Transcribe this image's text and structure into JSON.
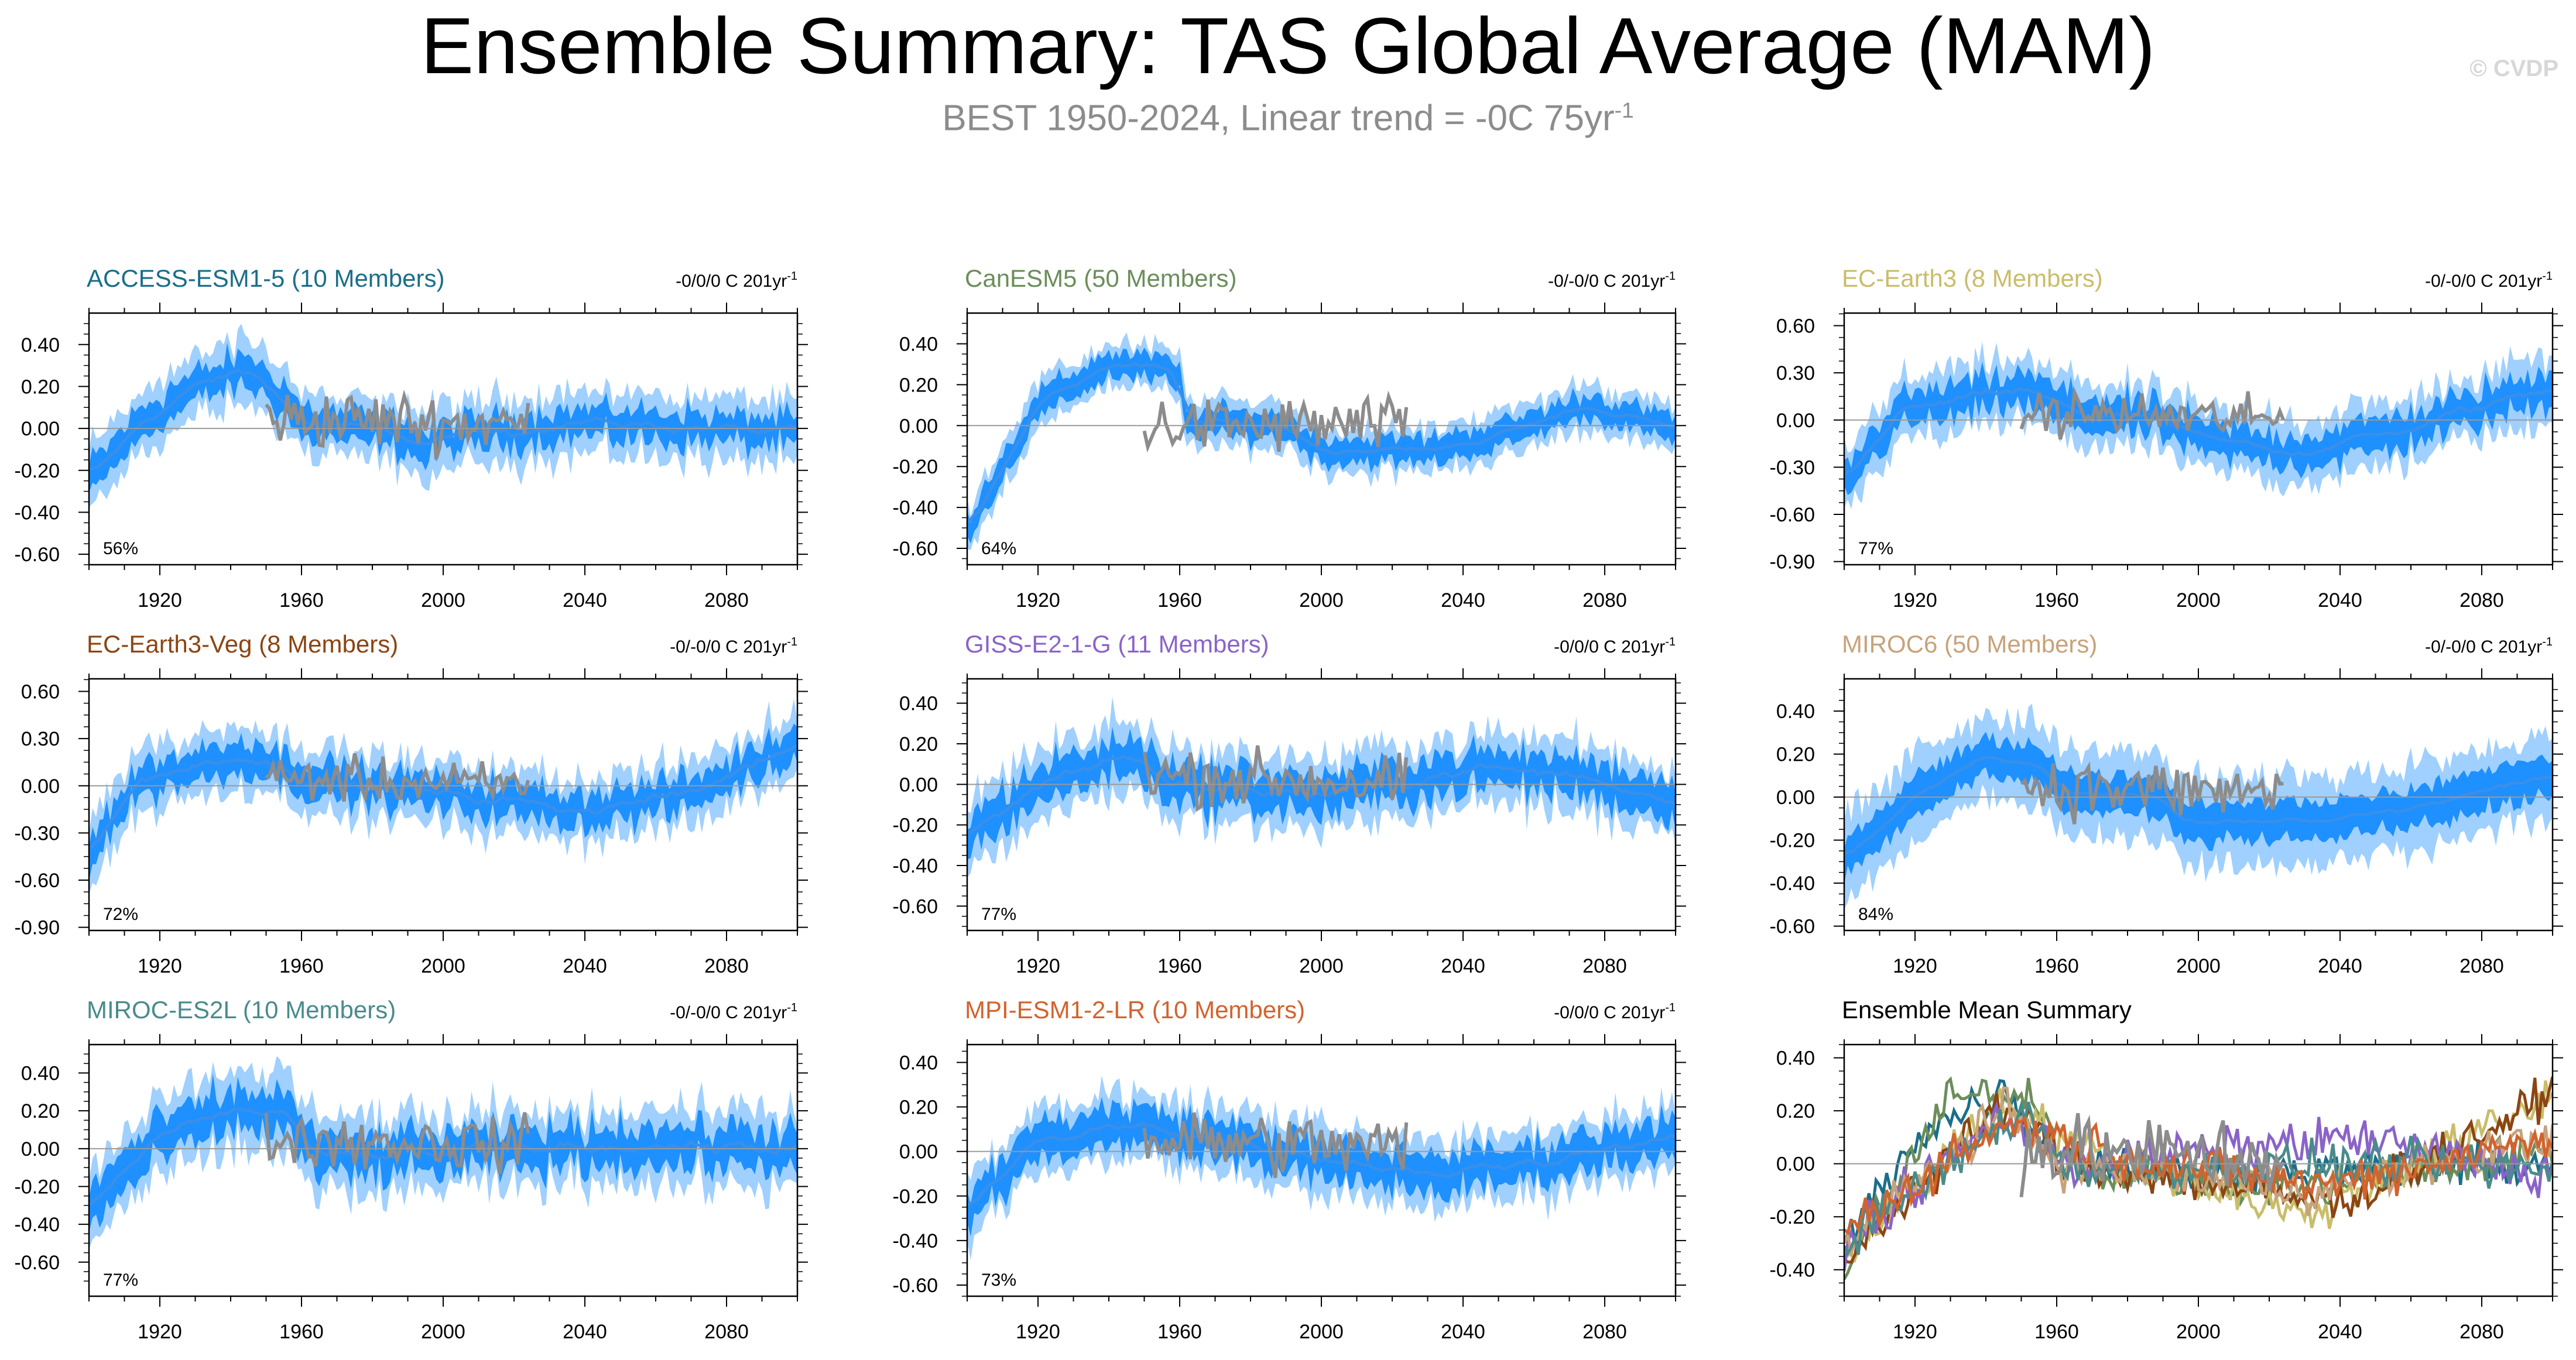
{
  "header": {
    "title": "Ensemble Summary: TAS Global Average (MAM)",
    "subtitle_main": "BEST 1950-2024, Linear trend = -0C 75yr",
    "subtitle_exp": "-1",
    "watermark": "© CVDP"
  },
  "colors": {
    "ens_mean": "#1e90ff",
    "inner_band": "#1e90ff",
    "outer_band": "#9fd0ff",
    "obs": "#8c8c8c"
  },
  "chart_data": [
    {
      "type": "line",
      "title": "ACCESS-ESM1-5 (10 Members)",
      "title_color": "#1b6e8a",
      "trend_label": "-0/0/0 C 201yr",
      "trend_exp": "-1",
      "percent": "56%",
      "ylim": [
        -0.65,
        0.55
      ],
      "yticks": [
        "0.40",
        "0.20",
        "0.00",
        "-0.20",
        "-0.40",
        "-0.60"
      ],
      "ytick_values": [
        0.4,
        0.2,
        0.0,
        -0.2,
        -0.4,
        -0.6
      ],
      "xlim": [
        1900,
        2100
      ],
      "xticks": [
        "1920",
        "1960",
        "2000",
        "2040",
        "2080"
      ],
      "profile": [
        [
          1900,
          -0.25
        ],
        [
          1915,
          0.03
        ],
        [
          1930,
          0.2
        ],
        [
          1945,
          0.28
        ],
        [
          1955,
          0.15
        ],
        [
          1960,
          0.03
        ],
        [
          1990,
          -0.03
        ],
        [
          1995,
          -0.1
        ],
        [
          2000,
          -0.04
        ],
        [
          2040,
          0.03
        ],
        [
          2100,
          -0.02
        ]
      ],
      "obs_profile": [
        [
          1950,
          0.05
        ],
        [
          2024,
          0.02
        ]
      ],
      "noise": 0.06,
      "spread_inner": 0.07,
      "spread_outer": 0.15
    },
    {
      "type": "line",
      "title": "CanESM5 (50 Members)",
      "title_color": "#6b8e5a",
      "trend_label": "-0/-0/0 C 201yr",
      "trend_exp": "-1",
      "percent": "64%",
      "ylim": [
        -0.68,
        0.55
      ],
      "yticks": [
        "0.40",
        "0.20",
        "0.00",
        "-0.20",
        "-0.40",
        "-0.60"
      ],
      "ytick_values": [
        0.4,
        0.2,
        0.0,
        -0.2,
        -0.4,
        -0.6
      ],
      "xlim": [
        1900,
        2100
      ],
      "xticks": [
        "1920",
        "1960",
        "2000",
        "2040",
        "2080"
      ],
      "profile": [
        [
          1900,
          -0.5
        ],
        [
          1920,
          0.1
        ],
        [
          1940,
          0.3
        ],
        [
          1955,
          0.28
        ],
        [
          1960,
          0.22
        ],
        [
          1962,
          0.02
        ],
        [
          1990,
          0.0
        ],
        [
          2000,
          -0.12
        ],
        [
          2030,
          -0.12
        ],
        [
          2050,
          -0.05
        ],
        [
          2075,
          0.1
        ],
        [
          2100,
          -0.02
        ]
      ],
      "obs_profile": [
        [
          1950,
          0.0
        ],
        [
          2024,
          0.0
        ]
      ],
      "noise": 0.04,
      "spread_inner": 0.06,
      "spread_outer": 0.11
    },
    {
      "type": "line",
      "title": "EC-Earth3 (8 Members)",
      "title_color": "#c9bd6a",
      "trend_label": "-0/-0/0 C 201yr",
      "trend_exp": "-1",
      "percent": "77%",
      "ylim": [
        -0.92,
        0.68
      ],
      "yticks": [
        "0.60",
        "0.30",
        "0.00",
        "-0.30",
        "-0.60",
        "-0.90"
      ],
      "ytick_values": [
        0.6,
        0.3,
        0.0,
        -0.3,
        -0.6,
        -0.9
      ],
      "xlim": [
        1900,
        2100
      ],
      "xticks": [
        "1920",
        "1960",
        "2000",
        "2040",
        "2080"
      ],
      "profile": [
        [
          1900,
          -0.4
        ],
        [
          1915,
          0.05
        ],
        [
          1950,
          0.2
        ],
        [
          1965,
          0.05
        ],
        [
          1990,
          0.0
        ],
        [
          2000,
          -0.12
        ],
        [
          2030,
          -0.2
        ],
        [
          2060,
          -0.05
        ],
        [
          2100,
          0.22
        ]
      ],
      "obs_profile": [
        [
          1950,
          0.05
        ],
        [
          2024,
          0.0
        ]
      ],
      "noise": 0.08,
      "spread_inner": 0.1,
      "spread_outer": 0.2
    },
    {
      "type": "line",
      "title": "EC-Earth3-Veg (8 Members)",
      "title_color": "#8b4513",
      "trend_label": "-0/-0/0 C 201yr",
      "trend_exp": "-1",
      "percent": "72%",
      "ylim": [
        -0.92,
        0.68
      ],
      "yticks": [
        "0.60",
        "0.30",
        "0.00",
        "-0.30",
        "-0.60",
        "-0.90"
      ],
      "ytick_values": [
        0.6,
        0.3,
        0.0,
        -0.3,
        -0.6,
        -0.9
      ],
      "xlim": [
        1900,
        2100
      ],
      "xticks": [
        "1920",
        "1960",
        "2000",
        "2040",
        "2080"
      ],
      "profile": [
        [
          1900,
          -0.4
        ],
        [
          1915,
          0.05
        ],
        [
          1945,
          0.2
        ],
        [
          1965,
          0.03
        ],
        [
          2000,
          -0.05
        ],
        [
          2040,
          -0.15
        ],
        [
          2070,
          -0.05
        ],
        [
          2100,
          0.28
        ]
      ],
      "obs_profile": [
        [
          1950,
          0.05
        ],
        [
          2024,
          0.0
        ]
      ],
      "noise": 0.08,
      "spread_inner": 0.1,
      "spread_outer": 0.2
    },
    {
      "type": "line",
      "title": "GISS-E2-1-G (11 Members)",
      "title_color": "#8a63c9",
      "trend_label": "-0/0/0 C 201yr",
      "trend_exp": "-1",
      "percent": "77%",
      "ylim": [
        -0.72,
        0.52
      ],
      "yticks": [
        "0.40",
        "0.20",
        "0.00",
        "-0.20",
        "-0.40",
        "-0.60"
      ],
      "ytick_values": [
        0.4,
        0.2,
        0.0,
        -0.2,
        -0.4,
        -0.6
      ],
      "xlim": [
        1900,
        2100
      ],
      "xticks": [
        "1920",
        "1960",
        "2000",
        "2040",
        "2080"
      ],
      "profile": [
        [
          1900,
          -0.25
        ],
        [
          1920,
          0.0
        ],
        [
          1945,
          0.15
        ],
        [
          1960,
          0.0
        ],
        [
          2000,
          -0.05
        ],
        [
          2045,
          0.08
        ],
        [
          2070,
          0.05
        ],
        [
          2100,
          -0.08
        ]
      ],
      "obs_profile": [
        [
          1950,
          0.05
        ],
        [
          2024,
          0.0
        ]
      ],
      "noise": 0.07,
      "spread_inner": 0.09,
      "spread_outer": 0.17
    },
    {
      "type": "line",
      "title": "MIROC6 (50 Members)",
      "title_color": "#c8a27a",
      "trend_label": "-0/-0/0 C 201yr",
      "trend_exp": "-1",
      "percent": "84%",
      "ylim": [
        -0.62,
        0.55
      ],
      "yticks": [
        "0.40",
        "0.20",
        "0.00",
        "-0.20",
        "-0.40",
        "-0.60"
      ],
      "ytick_values": [
        0.4,
        0.2,
        0.0,
        -0.2,
        -0.4,
        -0.6
      ],
      "xlim": [
        1900,
        2100
      ],
      "xticks": [
        "1920",
        "1960",
        "2000",
        "2040",
        "2080"
      ],
      "profile": [
        [
          1900,
          -0.3
        ],
        [
          1920,
          0.0
        ],
        [
          1940,
          0.2
        ],
        [
          1955,
          0.15
        ],
        [
          1962,
          0.02
        ],
        [
          1990,
          0.0
        ],
        [
          1995,
          -0.12
        ],
        [
          2030,
          -0.1
        ],
        [
          2060,
          -0.05
        ],
        [
          2100,
          0.1
        ]
      ],
      "obs_profile": [
        [
          1950,
          0.05
        ],
        [
          2024,
          0.02
        ]
      ],
      "noise": 0.03,
      "spread_inner": 0.09,
      "spread_outer": 0.2
    },
    {
      "type": "line",
      "title": "MIROC-ES2L (10 Members)",
      "title_color": "#4a8b8b",
      "trend_label": "-0/-0/0 C 201yr",
      "trend_exp": "-1",
      "percent": "77%",
      "ylim": [
        -0.78,
        0.55
      ],
      "yticks": [
        "0.40",
        "0.20",
        "0.00",
        "-0.20",
        "-0.40",
        "-0.60"
      ],
      "ytick_values": [
        0.4,
        0.2,
        0.0,
        -0.2,
        -0.4,
        -0.6
      ],
      "xlim": [
        1900,
        2100
      ],
      "xticks": [
        "1920",
        "1960",
        "2000",
        "2040",
        "2080"
      ],
      "profile": [
        [
          1900,
          -0.3
        ],
        [
          1920,
          0.05
        ],
        [
          1940,
          0.2
        ],
        [
          1955,
          0.2
        ],
        [
          1965,
          -0.05
        ],
        [
          2000,
          -0.02
        ],
        [
          2050,
          0.02
        ],
        [
          2100,
          0.0
        ]
      ],
      "obs_profile": [
        [
          1950,
          0.05
        ],
        [
          2024,
          0.02
        ]
      ],
      "noise": 0.08,
      "spread_inner": 0.1,
      "spread_outer": 0.2
    },
    {
      "type": "line",
      "title": "MPI-ESM1-2-LR (10 Members)",
      "title_color": "#d2632d",
      "trend_label": "-0/0/0 C 201yr",
      "trend_exp": "-1",
      "percent": "73%",
      "ylim": [
        -0.65,
        0.48
      ],
      "yticks": [
        "0.40",
        "0.20",
        "0.00",
        "-0.20",
        "-0.40",
        "-0.60"
      ],
      "ytick_values": [
        0.4,
        0.2,
        0.0,
        -0.2,
        -0.4,
        -0.6
      ],
      "xlim": [
        1900,
        2100
      ],
      "xticks": [
        "1920",
        "1960",
        "2000",
        "2040",
        "2080"
      ],
      "profile": [
        [
          1900,
          -0.25
        ],
        [
          1920,
          0.05
        ],
        [
          1945,
          0.12
        ],
        [
          1960,
          0.08
        ],
        [
          1990,
          0.0
        ],
        [
          2000,
          -0.05
        ],
        [
          2035,
          -0.1
        ],
        [
          2060,
          -0.05
        ],
        [
          2100,
          0.08
        ]
      ],
      "obs_profile": [
        [
          1950,
          0.05
        ],
        [
          2024,
          0.02
        ]
      ],
      "noise": 0.06,
      "spread_inner": 0.08,
      "spread_outer": 0.15
    },
    {
      "type": "line",
      "title": "Ensemble Mean Summary",
      "title_color": "#000000",
      "trend_label": "",
      "trend_exp": "",
      "percent": "",
      "ylim": [
        -0.5,
        0.45
      ],
      "yticks": [
        "0.40",
        "0.20",
        "0.00",
        "-0.20",
        "-0.40"
      ],
      "ytick_values": [
        0.4,
        0.2,
        0.0,
        -0.2,
        -0.4
      ],
      "xlim": [
        1900,
        2100
      ],
      "xticks": [
        "1920",
        "1960",
        "2000",
        "2040",
        "2080"
      ],
      "summary": true,
      "series": [
        {
          "name": "ACCESS-ESM1-5",
          "color": "#1b6e8a",
          "profile": [
            [
              1900,
              -0.3
            ],
            [
              1920,
              0.1
            ],
            [
              1945,
              0.28
            ],
            [
              1960,
              0.03
            ],
            [
              2000,
              -0.05
            ],
            [
              2100,
              0.0
            ]
          ]
        },
        {
          "name": "CanESM5",
          "color": "#6b8e5a",
          "profile": [
            [
              1900,
              -0.4
            ],
            [
              1930,
              0.25
            ],
            [
              1955,
              0.25
            ],
            [
              1962,
              0.0
            ],
            [
              2030,
              -0.1
            ],
            [
              2100,
              0.05
            ]
          ]
        },
        {
          "name": "EC-Earth3",
          "color": "#c9bd6a",
          "profile": [
            [
              1900,
              -0.35
            ],
            [
              1945,
              0.25
            ],
            [
              1960,
              0.1
            ],
            [
              2030,
              -0.2
            ],
            [
              2100,
              0.25
            ]
          ]
        },
        {
          "name": "EC-Earth3-Veg",
          "color": "#8b4513",
          "profile": [
            [
              1900,
              -0.35
            ],
            [
              1945,
              0.22
            ],
            [
              1965,
              0.0
            ],
            [
              2040,
              -0.15
            ],
            [
              2100,
              0.25
            ]
          ]
        },
        {
          "name": "GISS-E2-1-G",
          "color": "#8a63c9",
          "profile": [
            [
              1900,
              -0.3
            ],
            [
              1945,
              0.18
            ],
            [
              1965,
              0.0
            ],
            [
              2045,
              0.1
            ],
            [
              2100,
              -0.05
            ]
          ]
        },
        {
          "name": "MIROC6",
          "color": "#c8a27a",
          "profile": [
            [
              1900,
              -0.3
            ],
            [
              1945,
              0.2
            ],
            [
              1962,
              0.0
            ],
            [
              2030,
              -0.1
            ],
            [
              2100,
              0.1
            ]
          ]
        },
        {
          "name": "MIROC-ES2L",
          "color": "#4a8b8b",
          "profile": [
            [
              1900,
              -0.3
            ],
            [
              1950,
              0.2
            ],
            [
              1965,
              -0.02
            ],
            [
              2060,
              0.0
            ],
            [
              2100,
              -0.03
            ]
          ]
        },
        {
          "name": "MPI-ESM1-2-LR",
          "color": "#d2632d",
          "profile": [
            [
              1900,
              -0.25
            ],
            [
              1945,
              0.15
            ],
            [
              1990,
              0.0
            ],
            [
              2035,
              -0.08
            ],
            [
              2100,
              0.1
            ]
          ]
        }
      ],
      "obs_profile": [
        [
          1950,
          0.05
        ],
        [
          2024,
          0.02
        ]
      ],
      "noise": 0.07
    }
  ]
}
